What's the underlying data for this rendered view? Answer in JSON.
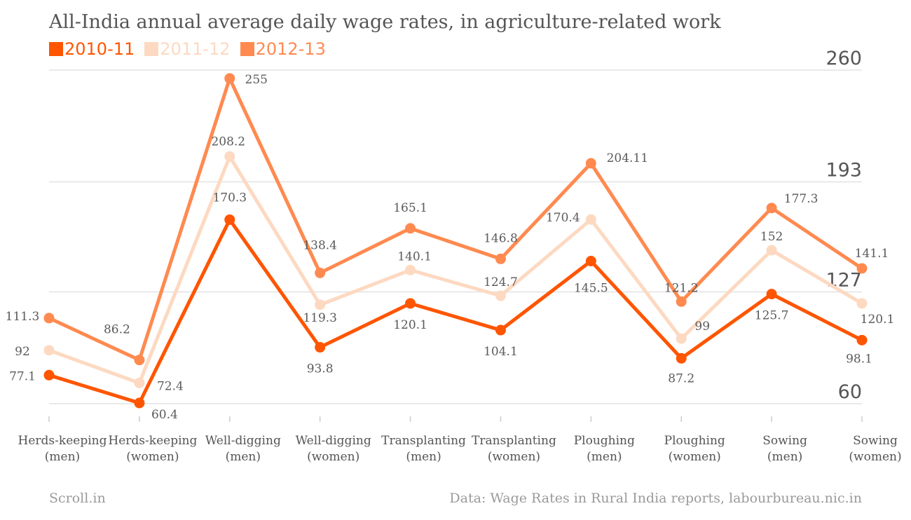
{
  "chart_data": {
    "type": "line",
    "title": "All-India annual average daily wage rates, in agriculture-related work",
    "categories": [
      [
        "Herds-keeping",
        "(men)"
      ],
      [
        "Herds-keeping",
        "(women)"
      ],
      [
        "Well-digging",
        "(men)"
      ],
      [
        "Well-digging",
        "(women)"
      ],
      [
        "Transplanting",
        "(men)"
      ],
      [
        "Transplanting",
        "(women)"
      ],
      [
        "Ploughing",
        "(men)"
      ],
      [
        "Ploughing",
        "(women)"
      ],
      [
        "Sowing",
        "(men)"
      ],
      [
        "Sowing",
        "(women)"
      ]
    ],
    "series": [
      {
        "name": "2010-11",
        "color": "#ff5500",
        "values": [
          77.1,
          60.4,
          170.3,
          93.8,
          120.1,
          104.1,
          145.5,
          87.2,
          125.7,
          98.1
        ],
        "labels": [
          "77.1",
          "60.4",
          "170.3",
          "93.8",
          "120.1",
          "104.1",
          "145.5",
          "87.2",
          "125.7",
          "98.1"
        ]
      },
      {
        "name": "2011-12",
        "color": "#fdd9c1",
        "values": [
          92,
          72.4,
          208.2,
          119.3,
          140.1,
          124.7,
          170.4,
          99,
          152,
          120.1
        ],
        "labels": [
          "92",
          "72.4",
          "208.2",
          "119.3",
          "140.1",
          "124.7",
          "170.4",
          "99",
          "152",
          "120.1"
        ]
      },
      {
        "name": "2012-13",
        "color": "#ff8a50",
        "values": [
          111.3,
          86.2,
          255,
          138.4,
          165.1,
          146.8,
          204.11,
          121.2,
          177.3,
          141.1
        ],
        "labels": [
          "111.3",
          "86.2",
          "255",
          "138.4",
          "165.1",
          "146.8",
          "204.11",
          "121.2",
          "177.3",
          "141.1"
        ]
      }
    ],
    "yticks": [
      "260",
      "193",
      "127",
      "60"
    ],
    "ytick_values": [
      260,
      193,
      127,
      60
    ],
    "ylim": [
      60,
      260
    ],
    "grid": true,
    "legend_position": "top-left"
  },
  "footer": {
    "source_left": "Scroll.in",
    "source_right": "Data: Wage Rates in Rural India reports, labourbureau.nic.in"
  }
}
